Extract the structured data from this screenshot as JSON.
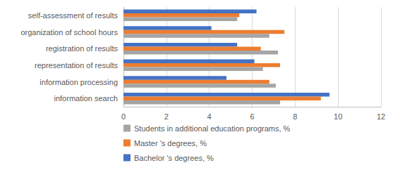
{
  "chart_data": {
    "type": "bar",
    "orientation": "horizontal",
    "categories": [
      "information search",
      "information processing",
      "representation of results",
      "registration of results",
      "organization of school hours",
      "self-assessment of results"
    ],
    "series": [
      {
        "name": "Bachelor 's degrees, %",
        "color": "#4472c4",
        "values": [
          9.6,
          4.8,
          6.1,
          5.3,
          4.1,
          6.2
        ]
      },
      {
        "name": "Master 's degrees, %",
        "color": "#ed7d31",
        "values": [
          9.2,
          6.8,
          7.3,
          6.4,
          7.5,
          5.4
        ]
      },
      {
        "name": "Students in additional education programs, %",
        "color": "#a5a5a5",
        "values": [
          7.3,
          7.1,
          6.5,
          7.2,
          6.8,
          5.3
        ]
      }
    ],
    "xlim": [
      0,
      12
    ],
    "xticks": [
      0,
      2,
      4,
      6,
      8,
      10,
      12
    ],
    "grid": true,
    "legend": "bottom"
  }
}
